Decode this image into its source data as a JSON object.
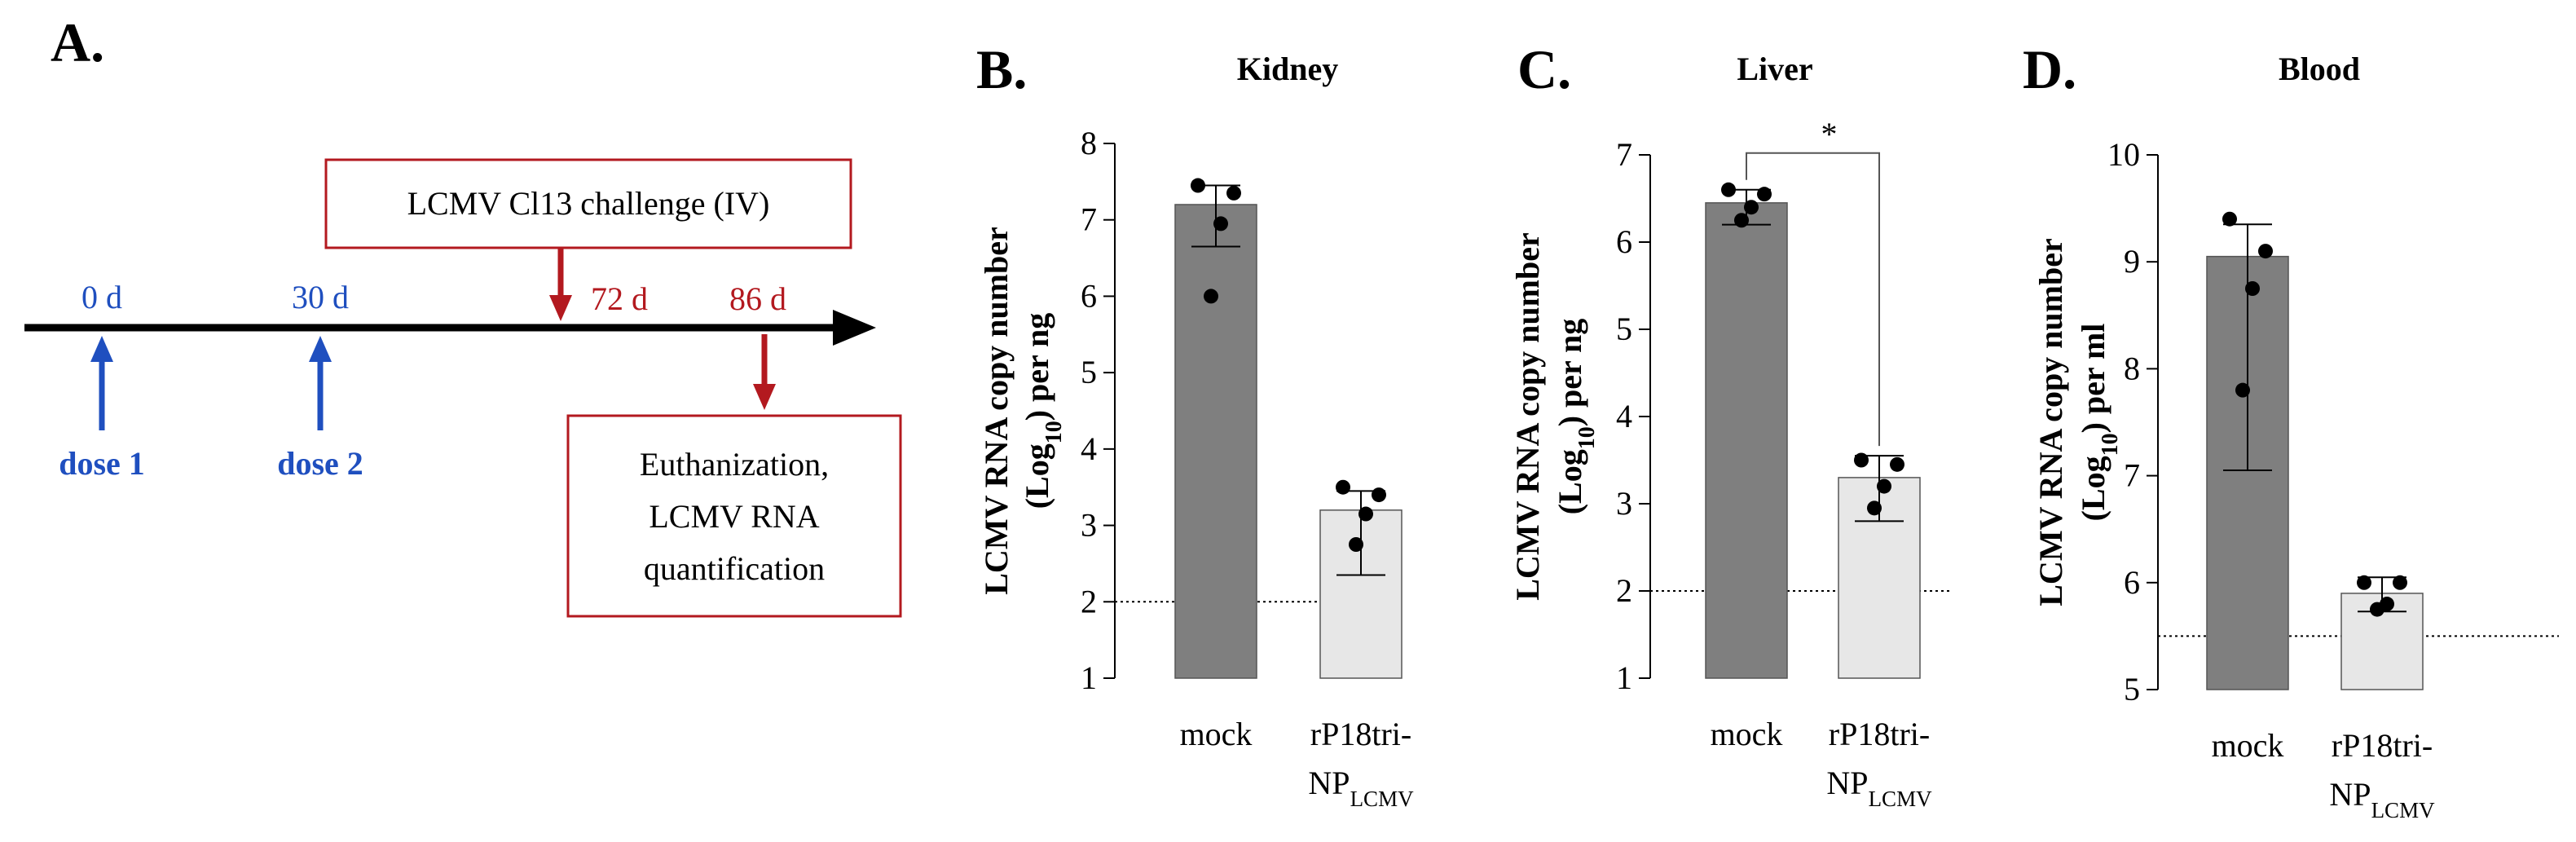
{
  "panel_a": {
    "letter": "A.",
    "timeline": [
      {
        "day": "0 d",
        "color": "#1f4fbf",
        "marker": "up-arrow",
        "label": "dose 1"
      },
      {
        "day": "30 d",
        "color": "#1f4fbf",
        "marker": "up-arrow",
        "label": "dose 2"
      },
      {
        "day": "72 d",
        "color": "#b3191f",
        "marker": "down-arrow",
        "label": ""
      },
      {
        "day": "86 d",
        "color": "#b3191f",
        "marker": "down-arrow",
        "label": ""
      }
    ],
    "challenge_box": "LCMV Cl13 challenge (IV)",
    "euthanization_box": [
      "Euthanization,",
      "LCMV RNA",
      "quantification"
    ]
  },
  "chart_data": [
    {
      "letter": "B.",
      "type": "bar",
      "title": "Kidney",
      "categories": [
        {
          "main": "mock",
          "sub": "",
          "line2": ""
        },
        {
          "main": "rP18tri-",
          "sub": "",
          "line2": "NP",
          "line2_sub": "LCMV"
        }
      ],
      "values": [
        7.2,
        3.2
      ],
      "error_low": [
        6.65,
        2.35
      ],
      "error_high": [
        7.45,
        3.45
      ],
      "points": [
        [
          7.45,
          7.35,
          6.95,
          6.0
        ],
        [
          3.5,
          3.4,
          3.15,
          2.75
        ]
      ],
      "ylim": [
        1,
        8
      ],
      "yticks": [
        1,
        2,
        3,
        4,
        5,
        6,
        7,
        8
      ],
      "ylabel_line1": "LCMV RNA copy number",
      "ylabel_line2_pre": "(Log",
      "ylabel_line2_sub": "10",
      "ylabel_line2_post": ") per ng",
      "detection_limit": 2,
      "significance": "",
      "bar_colors": [
        "#7f7f7f",
        "#e7e7e7"
      ]
    },
    {
      "letter": "C.",
      "type": "bar",
      "title": "Liver",
      "categories": [
        {
          "main": "mock",
          "sub": "",
          "line2": ""
        },
        {
          "main": "rP18tri-",
          "sub": "",
          "line2": "NP",
          "line2_sub": "LCMV"
        }
      ],
      "values": [
        6.45,
        3.3
      ],
      "error_low": [
        6.2,
        2.8
      ],
      "error_high": [
        6.6,
        3.55
      ],
      "points": [
        [
          6.6,
          6.55,
          6.4,
          6.25
        ],
        [
          3.5,
          3.45,
          3.2,
          2.95
        ]
      ],
      "ylim": [
        1,
        7
      ],
      "yticks": [
        1,
        2,
        3,
        4,
        5,
        6,
        7
      ],
      "ylabel_line1": "LCMV RNA copy number",
      "ylabel_line2_pre": "(Log",
      "ylabel_line2_sub": "10",
      "ylabel_line2_post": ") per ng",
      "detection_limit": 2,
      "significance": "*",
      "bar_colors": [
        "#7f7f7f",
        "#e7e7e7"
      ]
    },
    {
      "letter": "D.",
      "type": "bar",
      "title": "Blood",
      "categories": [
        {
          "main": "mock",
          "sub": "",
          "line2": ""
        },
        {
          "main": "rP18tri-",
          "sub": "",
          "line2": "NP",
          "line2_sub": "LCMV"
        }
      ],
      "values": [
        9.05,
        5.9
      ],
      "error_low": [
        7.05,
        5.73
      ],
      "error_high": [
        9.35,
        6.05
      ],
      "points": [
        [
          9.4,
          9.1,
          8.75,
          7.8
        ],
        [
          6.0,
          6.0,
          5.8,
          5.75
        ]
      ],
      "ylim": [
        5,
        10
      ],
      "yticks": [
        5,
        6,
        7,
        8,
        9,
        10
      ],
      "ylabel_line1": "LCMV RNA copy number",
      "ylabel_line2_pre": "(Log",
      "ylabel_line2_sub": "10",
      "ylabel_line2_post": ") per ml",
      "detection_limit": 5.5,
      "significance": "",
      "bar_colors": [
        "#7f7f7f",
        "#e7e7e7"
      ]
    }
  ]
}
